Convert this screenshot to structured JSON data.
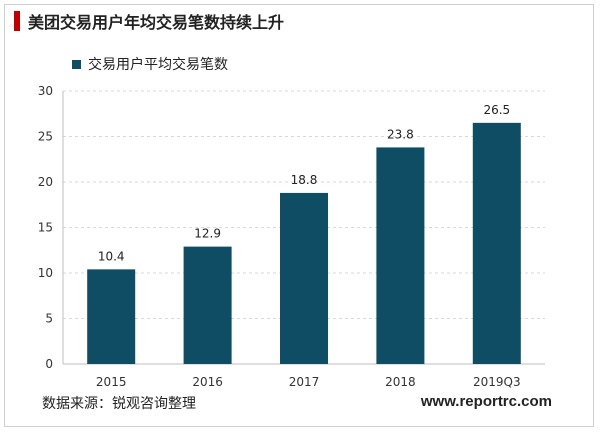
{
  "title": "美团交易用户年均交易笔数持续上升",
  "colors": {
    "bar": "#0e4d64",
    "title_marker": "#c00000",
    "grid": "#d9d9d9",
    "axis": "#bfbfbf"
  },
  "chart_data": {
    "type": "bar",
    "categories": [
      "2015",
      "2016",
      "2017",
      "2018",
      "2019Q3"
    ],
    "series": [
      {
        "name": "交易用户平均交易笔数",
        "values": [
          10.4,
          12.9,
          18.8,
          23.8,
          26.5
        ]
      }
    ],
    "data_labels": [
      "10.4",
      "12.9",
      "18.8",
      "23.8",
      "26.5"
    ],
    "y_ticks": [
      "0",
      "5",
      "10",
      "15",
      "20",
      "25",
      "30"
    ],
    "ylim": [
      0,
      30
    ],
    "grid": true,
    "legend_position": "top-left"
  },
  "source": "数据来源：锐观咨询整理",
  "website": "www.reportrc.com"
}
